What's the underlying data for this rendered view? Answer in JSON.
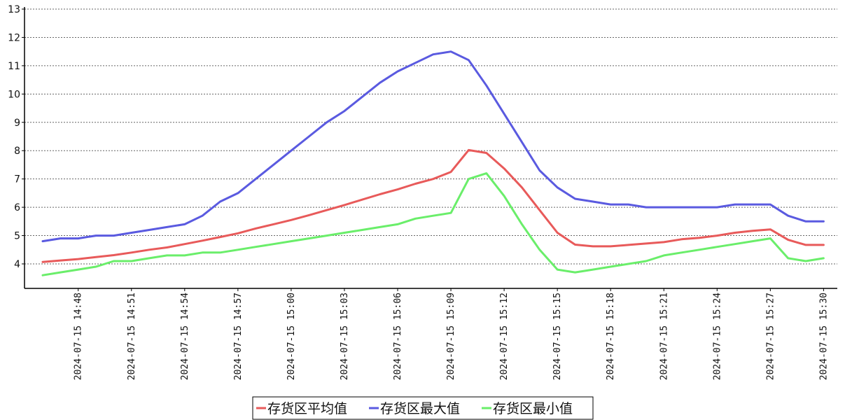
{
  "chart_data": {
    "type": "line",
    "title": "",
    "xlabel": "",
    "ylabel": "",
    "ylim": [
      3.2,
      13
    ],
    "yticks": [
      4,
      5,
      6,
      7,
      8,
      9,
      10,
      11,
      12,
      13
    ],
    "ytick_labels": [
      "4",
      "5",
      "6",
      "7",
      "8",
      "9",
      "10",
      "11",
      "12",
      "13"
    ],
    "x": [
      "14:46",
      "14:47",
      "14:48",
      "14:49",
      "14:50",
      "14:51",
      "14:52",
      "14:53",
      "14:54",
      "14:55",
      "14:56",
      "14:57",
      "14:58",
      "14:59",
      "15:00",
      "15:01",
      "15:02",
      "15:03",
      "15:04",
      "15:05",
      "15:06",
      "15:07",
      "15:08",
      "15:09",
      "15:10",
      "15:11",
      "15:12",
      "15:13",
      "15:14",
      "15:15",
      "15:16",
      "15:17",
      "15:18",
      "15:19",
      "15:20",
      "15:21",
      "15:22",
      "15:23",
      "15:24",
      "15:25",
      "15:26",
      "15:27",
      "15:28",
      "15:29",
      "15:30"
    ],
    "xtick_labels": [
      "2024-07-15 14:48",
      "2024-07-15 14:51",
      "2024-07-15 14:54",
      "2024-07-15 14:57",
      "2024-07-15 15:00",
      "2024-07-15 15:03",
      "2024-07-15 15:06",
      "2024-07-15 15:09",
      "2024-07-15 15:12",
      "2024-07-15 15:15",
      "2024-07-15 15:18",
      "2024-07-15 15:21",
      "2024-07-15 15:24",
      "2024-07-15 15:27",
      "2024-07-15 15:30"
    ],
    "grid": true,
    "legend_position": "bottom-center",
    "series": [
      {
        "name": "存货区平均值",
        "color": "#e85a5a",
        "values": [
          4.07,
          4.12,
          4.17,
          4.24,
          4.31,
          4.4,
          4.5,
          4.58,
          4.7,
          4.82,
          4.95,
          5.08,
          5.25,
          5.4,
          5.55,
          5.72,
          5.9,
          6.08,
          6.27,
          6.46,
          6.63,
          6.83,
          7.0,
          7.25,
          8.02,
          7.92,
          7.37,
          6.7,
          5.9,
          5.1,
          4.68,
          4.62,
          4.62,
          4.67,
          4.72,
          4.77,
          4.87,
          4.92,
          5.0,
          5.1,
          5.17,
          5.22,
          4.85,
          4.67,
          4.67
        ]
      },
      {
        "name": "存货区最大值",
        "color": "#5a5ae0",
        "values": [
          4.8,
          4.9,
          4.9,
          5.0,
          5.0,
          5.1,
          5.2,
          5.3,
          5.4,
          5.7,
          6.2,
          6.5,
          7.0,
          7.5,
          8.0,
          8.5,
          9.0,
          9.4,
          9.9,
          10.4,
          10.8,
          11.1,
          11.4,
          11.5,
          11.2,
          10.3,
          9.3,
          8.3,
          7.3,
          6.7,
          6.3,
          6.2,
          6.1,
          6.1,
          6.0,
          6.0,
          6.0,
          6.0,
          6.0,
          6.1,
          6.1,
          6.1,
          5.7,
          5.5,
          5.5
        ]
      },
      {
        "name": "存货区最小值",
        "color": "#6aee6a",
        "values": [
          3.6,
          3.7,
          3.8,
          3.9,
          4.1,
          4.1,
          4.2,
          4.3,
          4.3,
          4.4,
          4.4,
          4.5,
          4.6,
          4.7,
          4.8,
          4.9,
          5.0,
          5.1,
          5.2,
          5.3,
          5.4,
          5.6,
          5.7,
          5.8,
          7.0,
          7.2,
          6.4,
          5.4,
          4.5,
          3.8,
          3.7,
          3.8,
          3.9,
          4.0,
          4.1,
          4.3,
          4.4,
          4.5,
          4.6,
          4.7,
          4.8,
          4.9,
          4.2,
          4.1,
          4.2
        ]
      }
    ]
  }
}
